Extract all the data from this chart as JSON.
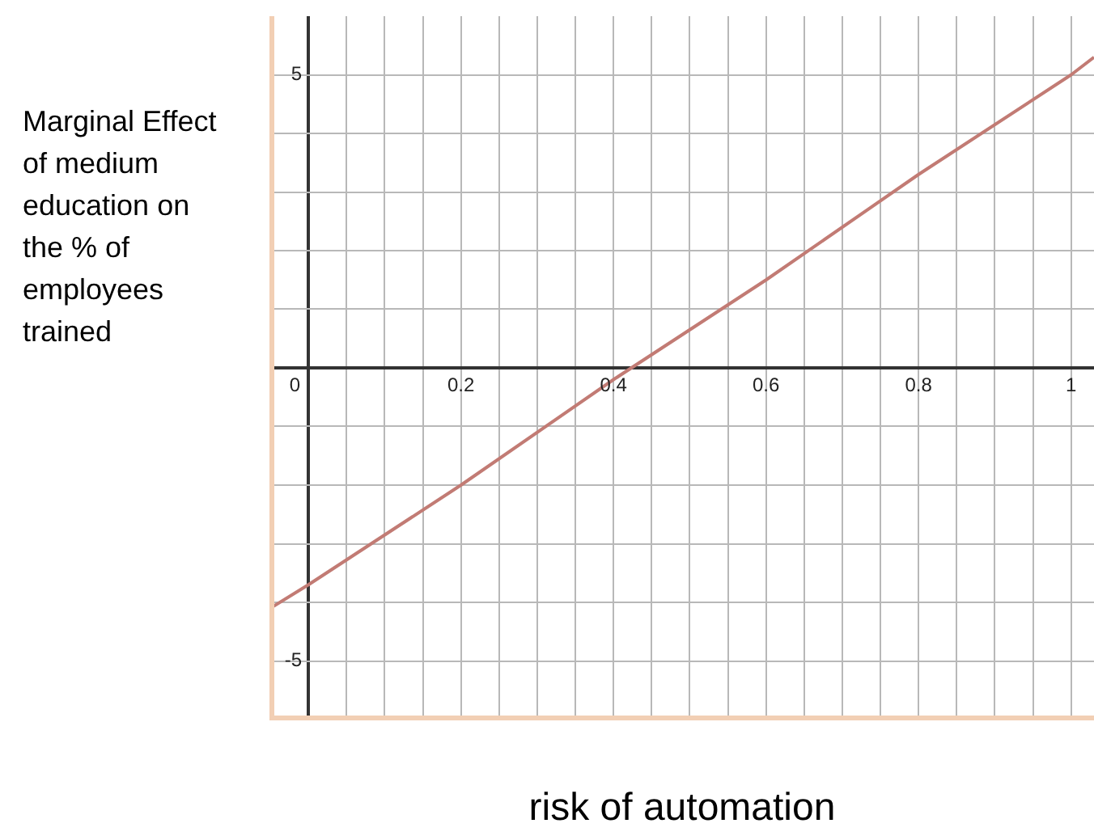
{
  "chart_data": {
    "type": "line",
    "xlabel": "risk of automation",
    "ylabel": "Marginal Effect of medium education on the % of employees trained",
    "x": [
      -0.05,
      0,
      0.2,
      0.4,
      0.6,
      0.8,
      1,
      1.03
    ],
    "series": [
      {
        "color": "#c27b74",
        "values": [
          -4.1,
          -3.7,
          -2.0,
          -0.2,
          1.5,
          3.3,
          5.0,
          5.3
        ]
      }
    ],
    "xlim": [
      -0.05,
      1.03
    ],
    "ylim": [
      -6,
      6
    ],
    "xticks": [
      0,
      {
        "value": 0.05,
        "label": null
      },
      {
        "value": 0.1,
        "label": null
      },
      {
        "value": 0.15,
        "label": null
      },
      0.2,
      {
        "value": 0.25,
        "label": null
      },
      {
        "value": 0.3,
        "label": null
      },
      {
        "value": 0.35,
        "label": null
      },
      0.4,
      {
        "value": 0.45,
        "label": null
      },
      {
        "value": 0.5,
        "label": null
      },
      {
        "value": 0.55,
        "label": null
      },
      0.6,
      {
        "value": 0.65,
        "label": null
      },
      {
        "value": 0.7,
        "label": null
      },
      {
        "value": 0.75,
        "label": null
      },
      0.8,
      {
        "value": 0.85,
        "label": null
      },
      {
        "value": 0.9,
        "label": null
      },
      {
        "value": 0.95,
        "label": null
      },
      1
    ],
    "yticks": [
      -5,
      {
        "value": -4,
        "label": null
      },
      {
        "value": -3,
        "label": null
      },
      {
        "value": -2,
        "label": null
      },
      {
        "value": -1,
        "label": null
      },
      {
        "value": 0,
        "label": null
      },
      {
        "value": 1,
        "label": null
      },
      {
        "value": 2,
        "label": null
      },
      {
        "value": 3,
        "label": null
      },
      {
        "value": 4,
        "label": null
      },
      5
    ],
    "grid": true,
    "legend": false,
    "marker": "none",
    "line_style": "solid"
  }
}
